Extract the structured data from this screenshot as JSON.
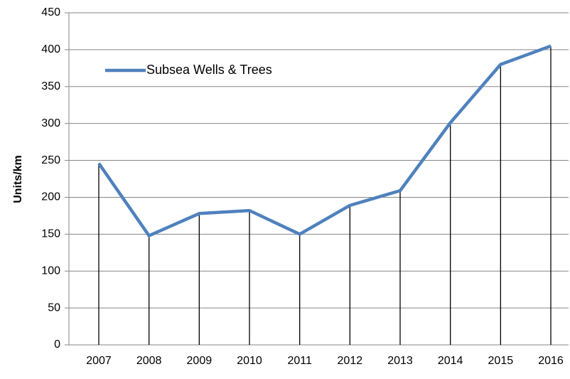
{
  "chart_data": {
    "type": "line",
    "y_label": "Units/km",
    "categories": [
      "2007",
      "2008",
      "2009",
      "2010",
      "2011",
      "2012",
      "2013",
      "2014",
      "2015",
      "2016"
    ],
    "series": [
      {
        "name": "Subsea Wells & Trees",
        "color": "#4f81bd",
        "values": [
          246,
          148,
          178,
          182,
          150,
          189,
          209,
          301,
          380,
          405
        ]
      }
    ],
    "ylim": [
      0,
      450
    ],
    "yticks": [
      0,
      50,
      100,
      150,
      200,
      250,
      300,
      350,
      400,
      450
    ],
    "grid": true,
    "drop_lines": true,
    "legend": "upper left"
  }
}
